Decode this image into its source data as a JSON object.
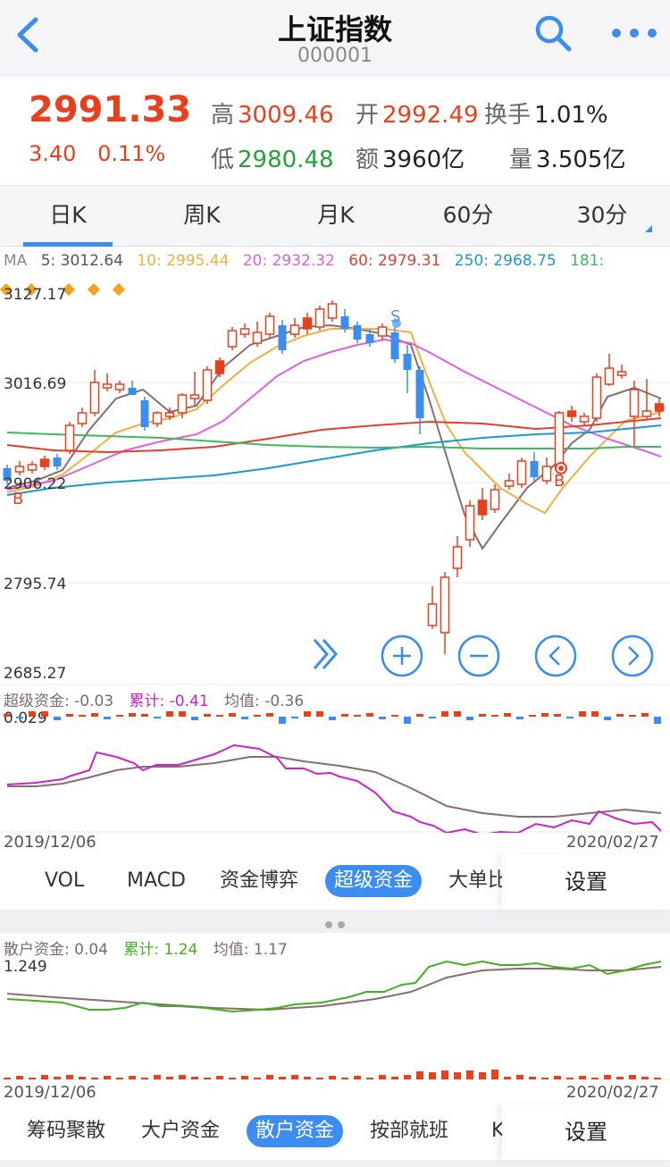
{
  "nav": {
    "title": "上证指数",
    "code": "000001"
  },
  "quote": {
    "price": "2991.33",
    "change": "3.40",
    "change_pct": "0.11%",
    "high_label": "高",
    "high": "3009.46",
    "open_label": "开",
    "open": "2992.49",
    "turnover_label": "换手",
    "turnover": "1.01%",
    "low_label": "低",
    "low": "2980.48",
    "amount_label": "额",
    "amount": "3960亿",
    "volume_label": "量",
    "volume": "3.505亿"
  },
  "tabs": [
    "日K",
    "周K",
    "月K",
    "60分",
    "30分"
  ],
  "ma": {
    "label": "MA",
    "items": [
      {
        "text": "5: 3012.64",
        "color": "#555555"
      },
      {
        "text": "10: 2995.44",
        "color": "#f0b040"
      },
      {
        "text": "20: 2932.32",
        "color": "#e060e0"
      },
      {
        "text": "60: 2979.31",
        "color": "#e04030"
      },
      {
        "text": "250: 2968.75",
        "color": "#1a9ad0"
      },
      {
        "text": "181:",
        "color": "#40b860"
      }
    ]
  },
  "yaxis": [
    "3127.17",
    "3016.69",
    "2906.22",
    "2795.74",
    "2685.27"
  ],
  "markers": {
    "buy": "B",
    "sell": "S"
  },
  "super_fund": {
    "legend": [
      {
        "text": "超级资金: -0.03",
        "color": "#7a6a6a"
      },
      {
        "text": "累计: -0.41",
        "color": "#cc22cc"
      },
      {
        "text": "均值: -0.36",
        "color": "#7a6a6a"
      }
    ],
    "top_value": "0.029",
    "date_start": "2019/12/06",
    "date_end": "2020/02/27"
  },
  "indicator_tabs_1": [
    "VOL",
    "MACD",
    "资金博弈",
    "超级资金",
    "大单比"
  ],
  "settings_label": "设置",
  "retail_fund": {
    "legend": [
      {
        "text": "散户资金: 0.04",
        "color": "#7a6a6a"
      },
      {
        "text": "累计: 1.24",
        "color": "#44b020"
      },
      {
        "text": "均值: 1.17",
        "color": "#7a6a6a"
      }
    ],
    "top_value": "1.249",
    "date_start": "2019/12/06",
    "date_end": "2020/02/27"
  },
  "indicator_tabs_2": [
    "筹码聚散",
    "大户资金",
    "散户资金",
    "按部就班",
    "K"
  ],
  "colors": {
    "up": "#e8401c",
    "down": "#3d8df0",
    "accent": "#3d8df0"
  }
}
